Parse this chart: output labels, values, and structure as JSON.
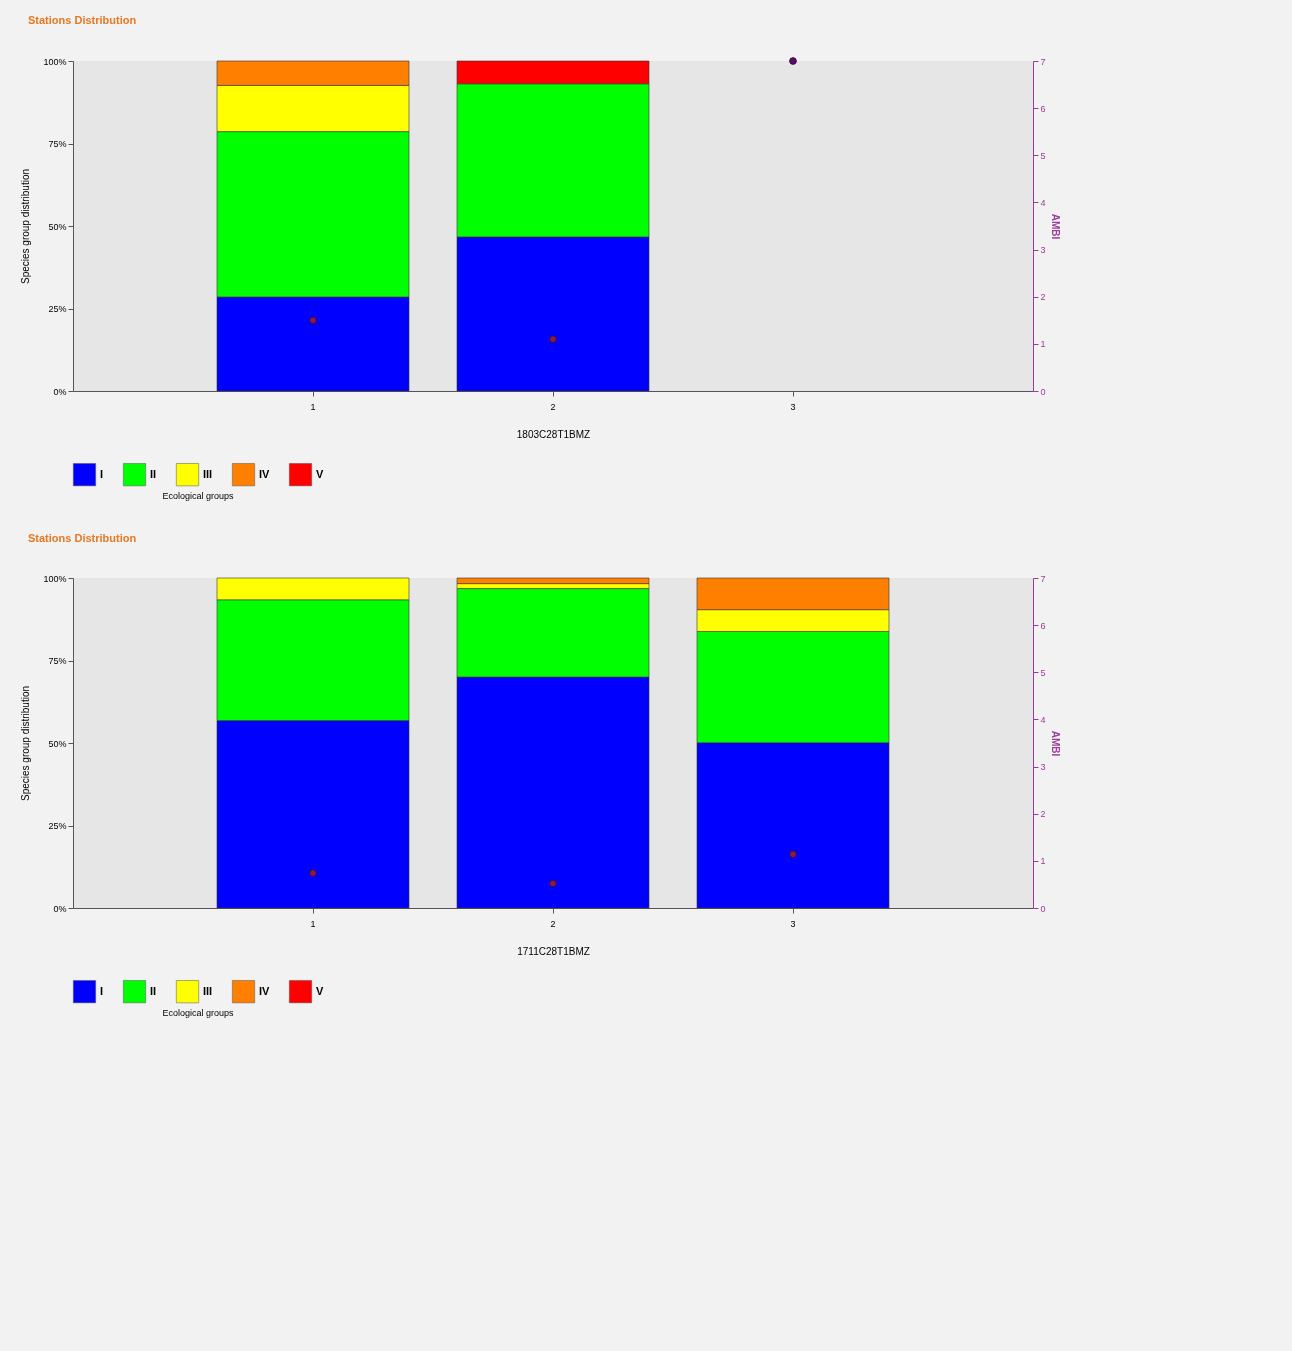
{
  "chart_data": [
    {
      "type": "bar",
      "title": "Stations Distribution",
      "xlabel": "1803C28T1BMZ",
      "ylabel": "Species group distribution",
      "y2label": "AMBI",
      "legend_title": "Ecological groups",
      "legend": "bottom",
      "stacked": true,
      "grid": false,
      "categories": [
        "1",
        "2",
        "3"
      ],
      "ylim": [
        0,
        100
      ],
      "yticks": [
        {
          "value": 0,
          "label": "0%"
        },
        {
          "value": 25,
          "label": "25%"
        },
        {
          "value": 50,
          "label": "50%"
        },
        {
          "value": 75,
          "label": "75%"
        },
        {
          "value": 100,
          "label": "100%"
        }
      ],
      "y2lim": [
        0,
        7
      ],
      "y2ticks": [
        0,
        1,
        2,
        3,
        4,
        5,
        6,
        7
      ],
      "series": [
        {
          "name": "I",
          "color": "#0000ff",
          "values": [
            28.5,
            46.7,
            null
          ]
        },
        {
          "name": "II",
          "color": "#00ff00",
          "values": [
            50.1,
            46.4,
            null
          ]
        },
        {
          "name": "III",
          "color": "#ffff00",
          "values": [
            14.0,
            null,
            null
          ]
        },
        {
          "name": "IV",
          "color": "#ff8000",
          "values": [
            7.4,
            null,
            null
          ]
        },
        {
          "name": "V",
          "color": "#ff0000",
          "values": [
            null,
            6.9,
            null
          ]
        },
        {
          "type": "scatter",
          "axis": "y2",
          "marker": "circle",
          "colors": [
            "#8b1a4a",
            "#8b1a4a",
            "#5c0a6e"
          ],
          "values": [
            1.5,
            1.1,
            7
          ]
        }
      ]
    },
    {
      "type": "bar",
      "title": "Stations Distribution",
      "xlabel": "1711C28T1BMZ",
      "ylabel": "Species group distribution",
      "y2label": "AMBI",
      "legend_title": "Ecological groups",
      "legend": "bottom",
      "stacked": true,
      "grid": false,
      "categories": [
        "1",
        "2",
        "3"
      ],
      "ylim": [
        0,
        100
      ],
      "yticks": [
        {
          "value": 0,
          "label": "0%"
        },
        {
          "value": 25,
          "label": "25%"
        },
        {
          "value": 50,
          "label": "50%"
        },
        {
          "value": 75,
          "label": "75%"
        },
        {
          "value": 100,
          "label": "100%"
        }
      ],
      "y2lim": [
        0,
        7
      ],
      "y2ticks": [
        0,
        1,
        2,
        3,
        4,
        5,
        6,
        7
      ],
      "series": [
        {
          "name": "I",
          "color": "#0000ff",
          "values": [
            56.8,
            70.0,
            50.1
          ]
        },
        {
          "name": "II",
          "color": "#00ff00",
          "values": [
            36.6,
            26.8,
            33.7
          ]
        },
        {
          "name": "III",
          "color": "#ffff00",
          "values": [
            6.6,
            1.5,
            6.6
          ]
        },
        {
          "name": "IV",
          "color": "#ff8000",
          "values": [
            null,
            1.7,
            9.6
          ]
        },
        {
          "name": "V",
          "color": "#ff0000",
          "values": [
            null,
            null,
            null
          ]
        },
        {
          "type": "scatter",
          "axis": "y2",
          "marker": "circle",
          "colors": [
            "#8b1a4a",
            "#8b1a4a",
            "#8b1a4a"
          ],
          "values": [
            0.74,
            0.52,
            1.14
          ]
        }
      ]
    }
  ]
}
